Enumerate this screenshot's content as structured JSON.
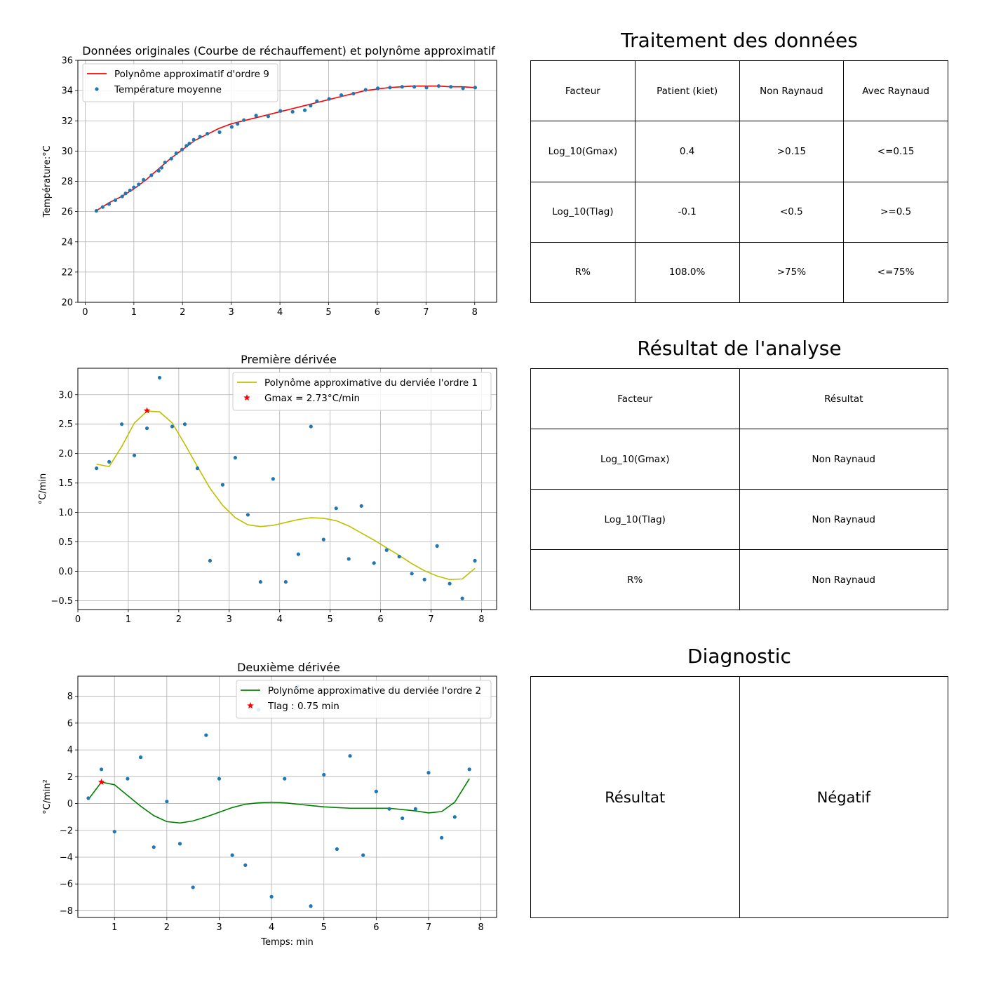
{
  "chart_data": [
    {
      "type": "scatter",
      "title": "Données originales (Courbe de réchauffement) et polynôme approximatif",
      "xlabel": "",
      "ylabel": "Température:°C",
      "xlim": [
        -0.15,
        8.45
      ],
      "ylim": [
        20,
        36
      ],
      "xticks": [
        "0",
        "1",
        "2",
        "3",
        "4",
        "5",
        "6",
        "7",
        "8"
      ],
      "yticks": [
        "20",
        "22",
        "24",
        "26",
        "28",
        "30",
        "32",
        "34",
        "36"
      ],
      "grid": true,
      "legend_position": "upper-left",
      "series": [
        {
          "name": "Polynôme approximatif d'ordre 9",
          "kind": "line",
          "color": "#ff0000",
          "x": [
            0.25,
            0.5,
            0.75,
            1.0,
            1.25,
            1.5,
            1.75,
            2.0,
            2.25,
            2.5,
            2.75,
            3.0,
            3.25,
            3.5,
            3.75,
            4.0,
            4.25,
            4.5,
            4.75,
            5.0,
            5.25,
            5.5,
            5.75,
            6.0,
            6.25,
            6.5,
            6.75,
            7.0,
            7.25,
            7.5,
            7.75,
            8.0
          ],
          "y": [
            26.1,
            26.6,
            27.0,
            27.5,
            28.1,
            28.8,
            29.5,
            30.1,
            30.7,
            31.1,
            31.5,
            31.8,
            32.0,
            32.2,
            32.4,
            32.6,
            32.8,
            33.0,
            33.2,
            33.4,
            33.6,
            33.8,
            34.0,
            34.1,
            34.2,
            34.25,
            34.3,
            34.3,
            34.3,
            34.25,
            34.25,
            34.2
          ]
        },
        {
          "name": "Température moyenne",
          "kind": "points",
          "color": "#1f77b4",
          "x": [
            0.23,
            0.36,
            0.49,
            0.62,
            0.76,
            0.83,
            0.92,
            1.0,
            1.1,
            1.2,
            1.36,
            1.51,
            1.57,
            1.64,
            1.77,
            1.87,
            1.99,
            2.08,
            2.14,
            2.23,
            2.36,
            2.51,
            2.76,
            3.01,
            3.13,
            3.26,
            3.51,
            3.76,
            4.01,
            4.26,
            4.51,
            4.63,
            4.76,
            5.01,
            5.26,
            5.51,
            5.76,
            6.01,
            6.26,
            6.51,
            6.76,
            7.01,
            7.26,
            7.51,
            7.76,
            8.01
          ],
          "y": [
            26.05,
            26.3,
            26.5,
            26.75,
            27.0,
            27.2,
            27.4,
            27.6,
            27.8,
            28.1,
            28.4,
            28.7,
            28.9,
            29.25,
            29.5,
            29.85,
            30.1,
            30.35,
            30.5,
            30.75,
            30.95,
            31.15,
            31.25,
            31.6,
            31.8,
            32.05,
            32.35,
            32.3,
            32.65,
            32.6,
            32.7,
            33.0,
            33.3,
            33.45,
            33.7,
            33.8,
            34.05,
            34.15,
            34.2,
            34.25,
            34.25,
            34.2,
            34.3,
            34.25,
            34.15,
            34.2
          ]
        }
      ]
    },
    {
      "type": "scatter",
      "title": "Première dérivée",
      "xlabel": "",
      "ylabel": "°C/min",
      "xlim": [
        0,
        8.3
      ],
      "ylim": [
        -0.65,
        3.45
      ],
      "xticks": [
        "0",
        "1",
        "2",
        "3",
        "4",
        "5",
        "6",
        "7",
        "8"
      ],
      "yticks": [
        "−0.5",
        "0.0",
        "0.5",
        "1.0",
        "1.5",
        "2.0",
        "2.5",
        "3.0"
      ],
      "grid": true,
      "legend_position": "upper-right",
      "series": [
        {
          "name": "Polynôme approximative du derviée l'ordre 1",
          "kind": "line",
          "color": "#bfbf00",
          "x": [
            0.37,
            0.62,
            0.87,
            1.12,
            1.37,
            1.62,
            1.87,
            2.12,
            2.37,
            2.62,
            2.87,
            3.12,
            3.37,
            3.62,
            3.87,
            4.12,
            4.37,
            4.62,
            4.87,
            5.12,
            5.37,
            5.62,
            5.87,
            6.12,
            6.37,
            6.62,
            6.87,
            7.12,
            7.37,
            7.62,
            7.87
          ],
          "y": [
            1.82,
            1.78,
            2.12,
            2.52,
            2.72,
            2.71,
            2.52,
            2.16,
            1.78,
            1.41,
            1.12,
            0.91,
            0.79,
            0.76,
            0.78,
            0.83,
            0.88,
            0.91,
            0.9,
            0.86,
            0.77,
            0.65,
            0.53,
            0.4,
            0.27,
            0.13,
            0.01,
            -0.08,
            -0.14,
            -0.13,
            0.05
          ]
        },
        {
          "name": "Gmax = 2.73°C/min",
          "kind": "star",
          "color": "#ff0000",
          "x": [
            1.37
          ],
          "y": [
            2.73
          ]
        },
        {
          "name": "",
          "kind": "points",
          "color": "#1f77b4",
          "x": [
            0.37,
            0.62,
            0.87,
            1.12,
            1.37,
            1.62,
            1.87,
            2.12,
            2.37,
            2.62,
            2.87,
            3.12,
            3.37,
            3.62,
            3.87,
            4.12,
            4.37,
            4.62,
            4.87,
            5.12,
            5.37,
            5.62,
            5.87,
            6.12,
            6.37,
            6.62,
            6.87,
            7.12,
            7.37,
            7.62,
            7.87
          ],
          "y": [
            1.75,
            1.86,
            2.5,
            1.97,
            2.43,
            3.29,
            2.46,
            2.5,
            1.75,
            0.18,
            1.47,
            1.93,
            0.96,
            -0.18,
            1.57,
            -0.18,
            0.29,
            2.46,
            0.54,
            1.07,
            0.21,
            1.11,
            0.14,
            0.36,
            0.25,
            -0.04,
            -0.14,
            0.43,
            -0.21,
            -0.46,
            0.18
          ]
        }
      ]
    },
    {
      "type": "scatter",
      "title": "Deuxième dérivée",
      "xlabel": "Temps: min",
      "ylabel": "°C/min²",
      "xlim": [
        0.3,
        8.3
      ],
      "ylim": [
        -8.5,
        9.5
      ],
      "xticks": [
        "1",
        "2",
        "3",
        "4",
        "5",
        "6",
        "7",
        "8"
      ],
      "yticks": [
        "−8",
        "−6",
        "−4",
        "−2",
        "0",
        "2",
        "4",
        "6",
        "8"
      ],
      "grid": true,
      "legend_position": "upper-right",
      "series": [
        {
          "name": "Polynôme approximative du derviée l'ordre 2",
          "kind": "line",
          "color": "#008000",
          "x": [
            0.5,
            0.75,
            1.0,
            1.25,
            1.5,
            1.75,
            2.0,
            2.25,
            2.5,
            2.75,
            3.0,
            3.25,
            3.5,
            3.75,
            4.0,
            4.25,
            4.5,
            4.75,
            5.0,
            5.25,
            5.5,
            5.75,
            6.0,
            6.25,
            6.5,
            6.75,
            7.0,
            7.25,
            7.5,
            7.78
          ],
          "y": [
            0.3,
            1.6,
            1.4,
            0.6,
            -0.2,
            -0.9,
            -1.35,
            -1.45,
            -1.3,
            -1.0,
            -0.65,
            -0.3,
            -0.05,
            0.05,
            0.1,
            0.05,
            -0.05,
            -0.15,
            -0.25,
            -0.3,
            -0.35,
            -0.35,
            -0.35,
            -0.35,
            -0.45,
            -0.55,
            -0.7,
            -0.6,
            0.1,
            1.85
          ]
        },
        {
          "name": "Tlag : 0.75 min",
          "kind": "star",
          "color": "#ff0000",
          "x": [
            0.75
          ],
          "y": [
            1.6
          ]
        },
        {
          "name": "",
          "kind": "points",
          "color": "#1f77b4",
          "x": [
            0.5,
            0.75,
            1.0,
            1.25,
            1.5,
            1.75,
            2.0,
            2.25,
            2.5,
            2.75,
            3.0,
            3.25,
            3.5,
            3.75,
            4.0,
            4.25,
            4.5,
            4.75,
            5.0,
            5.25,
            5.5,
            5.75,
            6.0,
            6.25,
            6.5,
            6.75,
            7.0,
            7.25,
            7.5,
            7.78
          ],
          "y": [
            0.4,
            2.55,
            -2.1,
            1.85,
            3.45,
            -3.25,
            0.15,
            -3.0,
            -6.25,
            5.1,
            1.85,
            -3.85,
            -4.6,
            7.0,
            -6.95,
            1.85,
            8.75,
            -7.65,
            2.15,
            -3.4,
            3.55,
            -3.85,
            0.9,
            -0.4,
            -1.1,
            -0.4,
            2.3,
            -2.55,
            -1.0,
            2.55
          ]
        }
      ]
    }
  ],
  "tables": {
    "processing": {
      "title": "Traitement des données",
      "rows": [
        [
          "Facteur",
          "Patient (kiet)",
          "Non Raynaud",
          "Avec Raynaud"
        ],
        [
          "Log_10(Gmax)",
          "0.4",
          ">0.15",
          "<=0.15"
        ],
        [
          "Log_10(Tlag)",
          "-0.1",
          "<0.5",
          ">=0.5"
        ],
        [
          "R%",
          "108.0%",
          ">75%",
          "<=75%"
        ]
      ]
    },
    "analysis": {
      "title": "Résultat de l'analyse",
      "rows": [
        [
          "Facteur",
          "Résultat"
        ],
        [
          "Log_10(Gmax)",
          "Non Raynaud"
        ],
        [
          "Log_10(Tlag)",
          "Non Raynaud"
        ],
        [
          "R%",
          "Non Raynaud"
        ]
      ]
    },
    "diagnostic": {
      "title": "Diagnostic",
      "label": "Résultat",
      "value": "Négatif"
    }
  }
}
